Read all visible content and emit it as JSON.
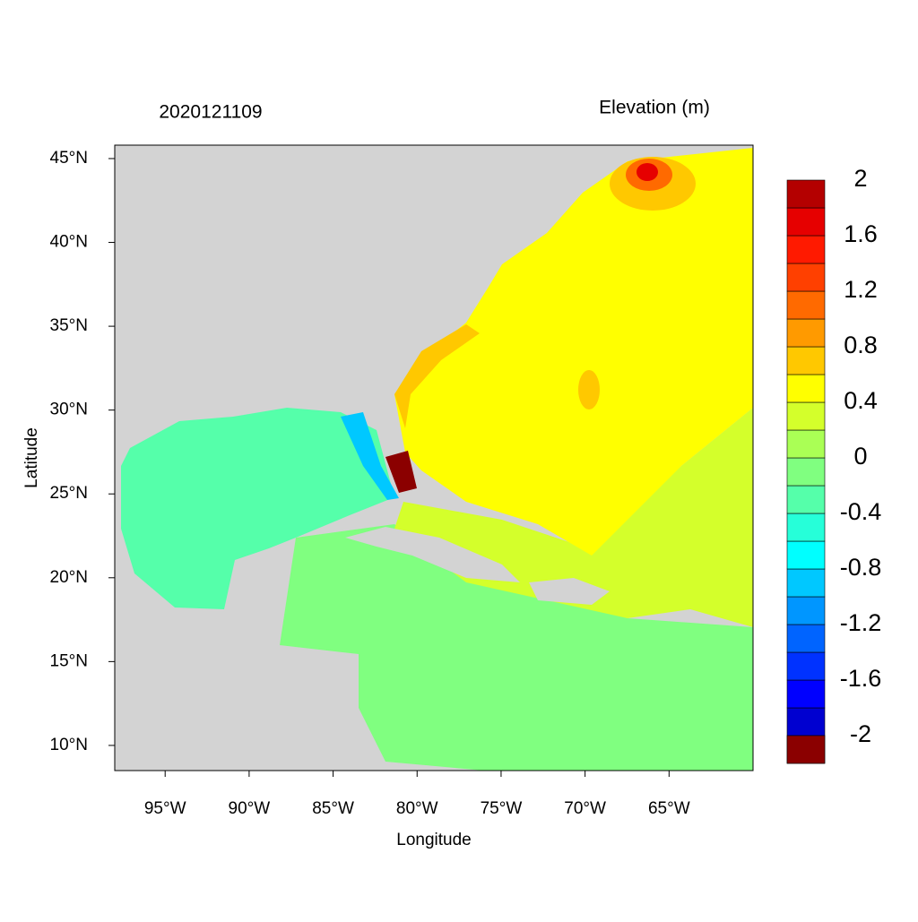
{
  "chart_data": {
    "type": "contour-map",
    "title": "2020121109",
    "subtitle": "Elevation (m)",
    "x_label": "Longitude",
    "y_label": "Latitude",
    "xlim": [
      -98,
      -60
    ],
    "ylim": [
      8.5,
      45.8
    ],
    "xticks": [
      {
        "value": -95,
        "label": "95°W"
      },
      {
        "value": -90,
        "label": "90°W"
      },
      {
        "value": -85,
        "label": "85°W"
      },
      {
        "value": -80,
        "label": "80°W"
      },
      {
        "value": -75,
        "label": "75°W"
      },
      {
        "value": -70,
        "label": "70°W"
      },
      {
        "value": -65,
        "label": "65°W"
      }
    ],
    "yticks": [
      {
        "value": 10,
        "label": "10°N"
      },
      {
        "value": 15,
        "label": "15°N"
      },
      {
        "value": 20,
        "label": "20°N"
      },
      {
        "value": 25,
        "label": "25°N"
      },
      {
        "value": 30,
        "label": "30°N"
      },
      {
        "value": 35,
        "label": "35°N"
      },
      {
        "value": 40,
        "label": "40°N"
      },
      {
        "value": 45,
        "label": "45°N"
      }
    ],
    "colorbar": {
      "levels": [
        -2,
        -1.8,
        -1.6,
        -1.4,
        -1.2,
        -1,
        -0.8,
        -0.6,
        -0.4,
        -0.2,
        0,
        0.2,
        0.4,
        0.6,
        0.8,
        1,
        1.2,
        1.4,
        1.6,
        1.8,
        2
      ],
      "colors": [
        "#0000a8",
        "#0000d0",
        "#0000ff",
        "#0032ff",
        "#0064ff",
        "#0096ff",
        "#00c8ff",
        "#00ffff",
        "#26ffd9",
        "#55ffaa",
        "#80ff80",
        "#aaff55",
        "#d4ff2b",
        "#ffff00",
        "#ffc800",
        "#ff9a00",
        "#ff6a00",
        "#ff4000",
        "#ff1a00",
        "#e60000",
        "#b40000",
        "#8b0000"
      ],
      "ticks": [
        -2,
        -1.6,
        -1.2,
        -0.8,
        -0.4,
        0,
        0.4,
        0.8,
        1.2,
        1.6,
        2
      ]
    }
  }
}
